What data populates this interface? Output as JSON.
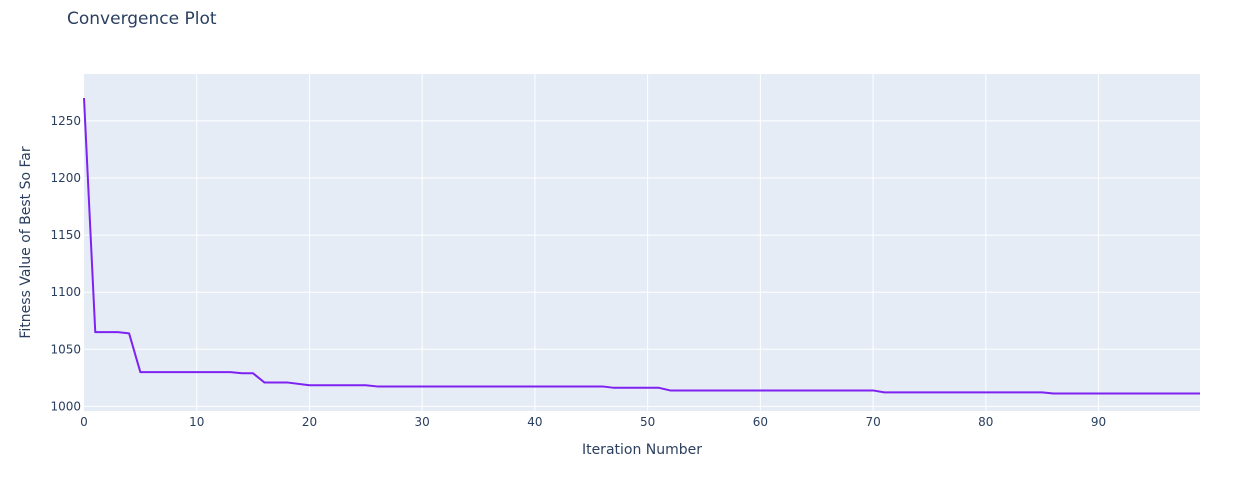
{
  "chart_data": {
    "type": "line",
    "title": "Convergence Plot",
    "xlabel": "Iteration Number",
    "ylabel": "Fitness Value of Best So Far",
    "xlim": [
      0,
      99
    ],
    "ylim": [
      996,
      1291
    ],
    "x_ticks": [
      0,
      10,
      20,
      30,
      40,
      50,
      60,
      70,
      80,
      90
    ],
    "y_ticks": [
      1000,
      1050,
      1100,
      1150,
      1200,
      1250
    ],
    "grid": true,
    "plot_background": "#e5ecf6",
    "grid_color": "#ffffff",
    "series": [
      {
        "color": "#7e22f2",
        "x": [
          0,
          1,
          3,
          4,
          5,
          13,
          14,
          15,
          16,
          18,
          20,
          25,
          26,
          46,
          47,
          51,
          52,
          70,
          71,
          85,
          86,
          99
        ],
        "y": [
          1270,
          1065,
          1065,
          1064,
          1030,
          1030,
          1029,
          1029,
          1021,
          1021,
          1018.5,
          1018.5,
          1017.5,
          1017.5,
          1016.3,
          1016.3,
          1014,
          1014,
          1012.3,
          1012.3,
          1011.3,
          1011.3
        ]
      }
    ]
  }
}
